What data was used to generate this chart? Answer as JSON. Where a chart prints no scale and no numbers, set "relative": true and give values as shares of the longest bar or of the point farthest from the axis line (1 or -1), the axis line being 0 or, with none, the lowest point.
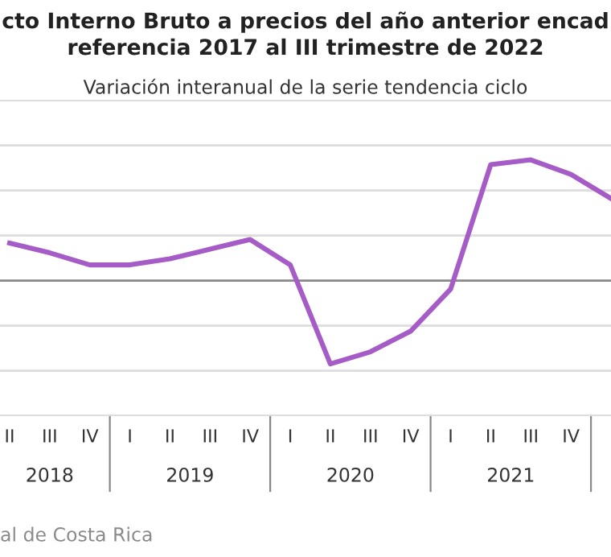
{
  "chart_data": {
    "type": "line",
    "title": "cto Interno Bruto a precios del año anterior encad\nreferencia 2017 al III trimestre de 2022",
    "subtitle": "Variación interanual de la serie tendencia ciclo",
    "relative": true,
    "categories": [
      "II",
      "III",
      "IV",
      "I",
      "II",
      "III",
      "IV",
      "I",
      "II",
      "III",
      "IV",
      "I",
      "II",
      "III",
      "IV",
      null
    ],
    "series": [
      {
        "color": "#a65cc6",
        "values": [
          0.31,
          0.23,
          0.13,
          0.13,
          0.18,
          0.26,
          0.34,
          0.13,
          -0.69,
          -0.59,
          -0.42,
          -0.07,
          0.96,
          1,
          0.88,
          0.68
        ]
      }
    ],
    "annotations": [
      "2018",
      "2019",
      "2020",
      "2021",
      "al de Costa Rica"
    ],
    "grid": "y",
    "marker": "none",
    "line_style": "solid",
    "legend": false
  }
}
